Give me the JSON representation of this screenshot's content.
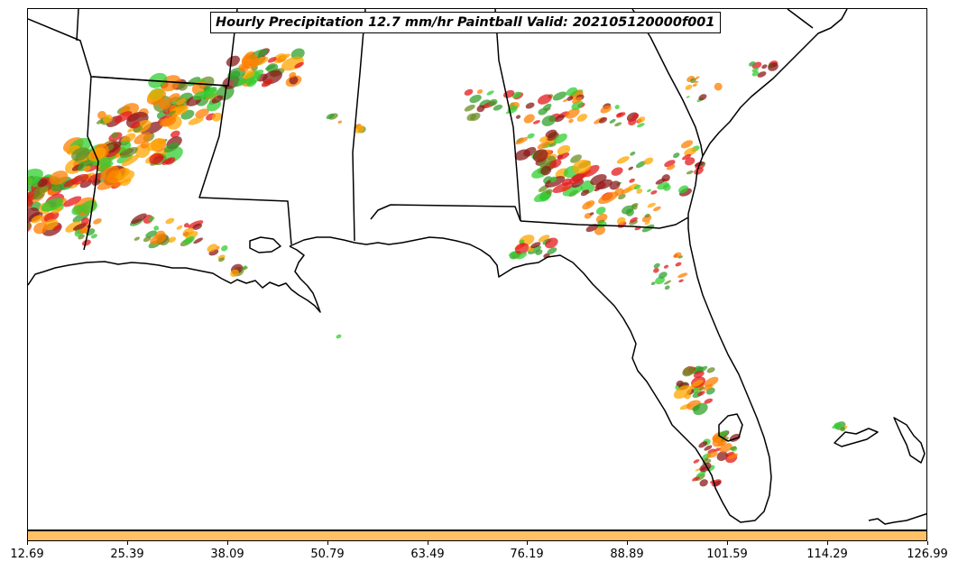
{
  "title": "Hourly Precipitation 12.7 mm/hr Paintball Valid: 202105120000f001",
  "colors": {
    "coastline": "#000000",
    "colorbar_fill": "#ffc066",
    "paintball_members": [
      "#ff7f00",
      "#e31a1c",
      "#33a02c",
      "#32cd32",
      "#6b8e23",
      "#8b1a1a",
      "#ffa500"
    ]
  },
  "colorbar": {
    "tick_labels": [
      "12.69",
      "25.39",
      "38.09",
      "50.79",
      "63.49",
      "76.19",
      "88.89",
      "101.59",
      "114.29",
      "126.99"
    ]
  }
}
